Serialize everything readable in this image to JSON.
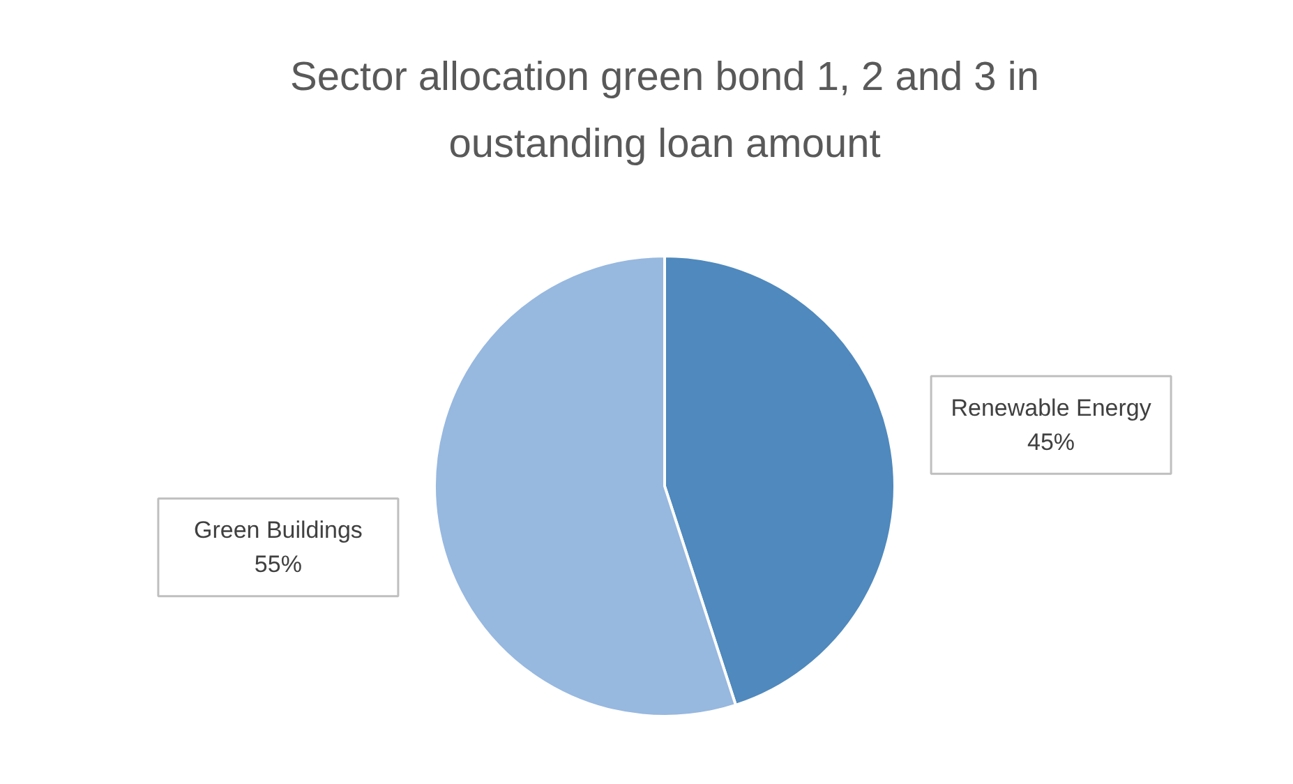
{
  "chart_data": {
    "type": "pie",
    "title": "Sector allocation green bond 1, 2 and 3 in oustanding loan amount",
    "categories": [
      "Renewable Energy",
      "Green Buildings"
    ],
    "values": [
      45,
      55
    ],
    "value_labels": [
      "45%",
      "55%"
    ],
    "colors": [
      "#4f89bd",
      "#97b8df"
    ],
    "legend": false
  }
}
